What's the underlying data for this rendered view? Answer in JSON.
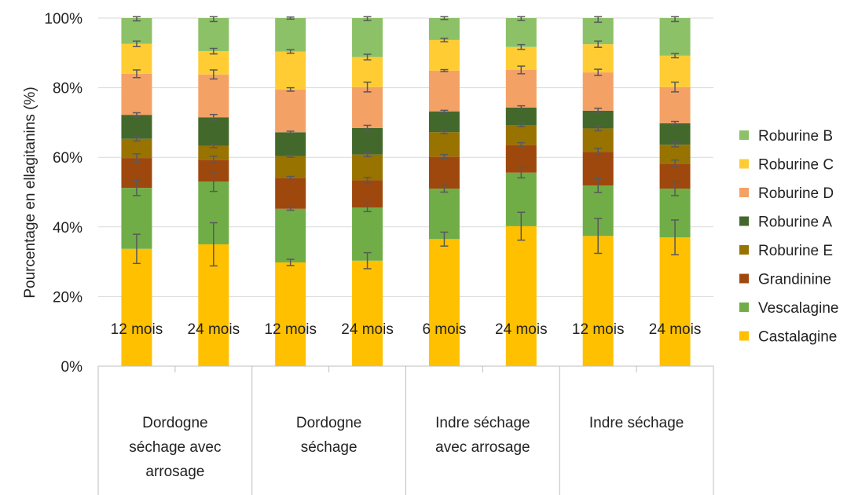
{
  "chart_data": {
    "type": "bar",
    "stacked": true,
    "ylabel": "Pourcentage en ellagitanins (%)",
    "xlabel": "",
    "ylim": [
      0,
      100
    ],
    "yticks": [
      "0%",
      "20%",
      "40%",
      "60%",
      "80%",
      "100%"
    ],
    "grid": true,
    "legend_position": "right",
    "categories": [
      "12 mois",
      "24 mois",
      "12 mois",
      "24 mois",
      "6 mois",
      "24 mois",
      "12 mois",
      "24 mois"
    ],
    "groups": [
      {
        "label_lines": [
          "Dordogne",
          "séchage avec",
          "arrosage"
        ]
      },
      {
        "label_lines": [
          "Dordogne",
          "séchage"
        ]
      },
      {
        "label_lines": [
          "Indre séchage",
          "avec arrosage"
        ]
      },
      {
        "label_lines": [
          "Indre séchage"
        ]
      }
    ],
    "series": [
      {
        "name": "Castalagine",
        "color": "#FFC000",
        "values": [
          33.7,
          35.0,
          29.8,
          30.3,
          36.5,
          40.2,
          37.4,
          37.0
        ],
        "errors": [
          4.2,
          6.2,
          0.9,
          2.3,
          2.0,
          4.0,
          5.0,
          5.0
        ]
      },
      {
        "name": "Vescalagine",
        "color": "#70AD47",
        "values": [
          17.5,
          18.0,
          15.4,
          15.3,
          14.5,
          15.4,
          14.5,
          14.0
        ],
        "errors": [
          2.2,
          2.8,
          0.4,
          1.2,
          1.0,
          1.5,
          2.0,
          2.0
        ]
      },
      {
        "name": "Grandinine",
        "color": "#9E480E",
        "values": [
          8.6,
          6.3,
          8.9,
          7.8,
          9.2,
          8.0,
          9.7,
          7.2
        ],
        "errors": [
          1.2,
          1.0,
          0.4,
          0.8,
          0.6,
          0.6,
          1.0,
          1.0
        ]
      },
      {
        "name": "Roburine E",
        "color": "#997300",
        "values": [
          5.5,
          4.0,
          6.2,
          7.4,
          7.0,
          5.7,
          6.7,
          5.4
        ],
        "errors": [
          0.6,
          0.5,
          0.3,
          0.6,
          0.4,
          0.5,
          0.7,
          0.6
        ]
      },
      {
        "name": "Roburine A",
        "color": "#43682B",
        "values": [
          6.9,
          8.2,
          6.9,
          7.6,
          6.0,
          5.0,
          5.1,
          6.2
        ],
        "errors": [
          0.6,
          0.8,
          0.3,
          0.8,
          0.3,
          0.5,
          0.7,
          0.5
        ]
      },
      {
        "name": "Roburine D",
        "color": "#F4A166",
        "values": [
          11.8,
          12.3,
          12.3,
          11.8,
          11.7,
          10.8,
          11.0,
          10.4
        ],
        "errors": [
          1.1,
          1.3,
          0.5,
          1.4,
          0.3,
          1.1,
          0.9,
          1.4
        ]
      },
      {
        "name": "Roburine C",
        "color": "#FFCD33",
        "values": [
          8.6,
          6.7,
          10.9,
          8.6,
          8.8,
          6.6,
          8.1,
          9.0
        ],
        "errors": [
          0.8,
          0.8,
          0.5,
          0.8,
          0.5,
          0.7,
          0.9,
          0.6
        ]
      },
      {
        "name": "Roburine B",
        "color": "#8CC168",
        "values": [
          7.4,
          9.5,
          9.6,
          11.2,
          6.3,
          8.3,
          7.5,
          10.8
        ],
        "errors": [
          0.8,
          1.0,
          0.3,
          0.7,
          0.4,
          0.7,
          1.2,
          1.0
        ]
      }
    ]
  }
}
